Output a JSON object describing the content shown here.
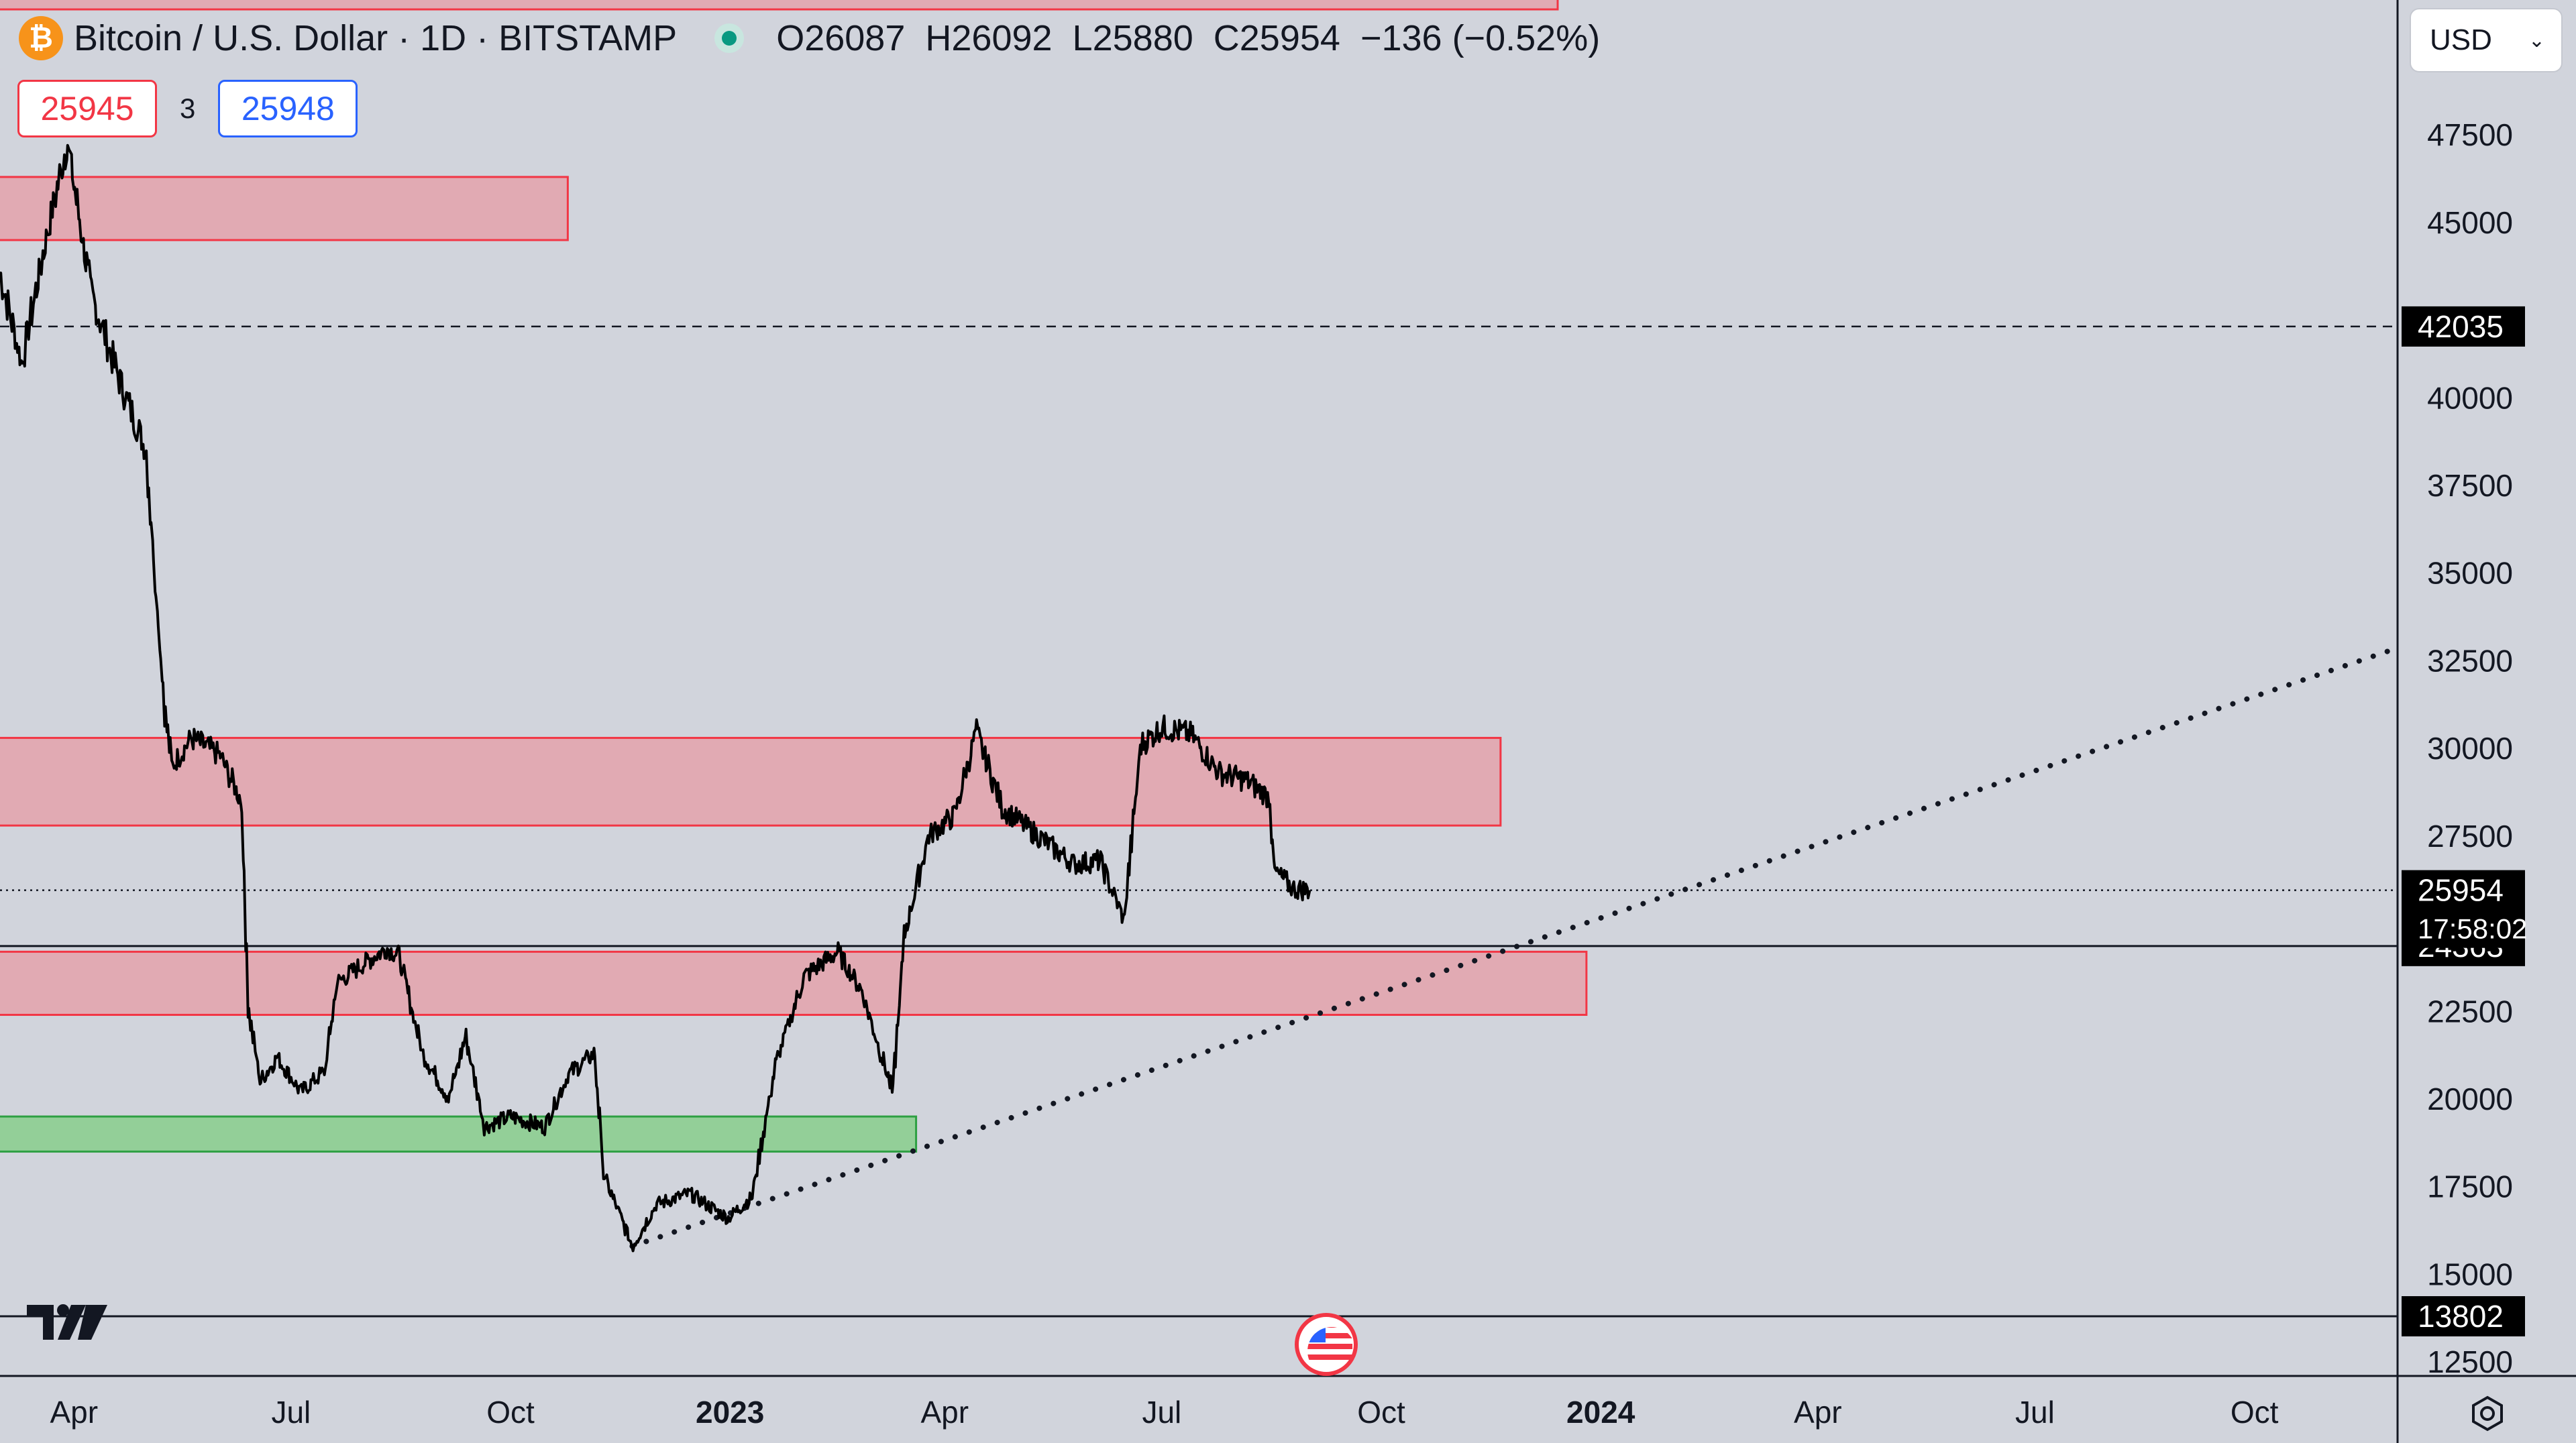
{
  "header": {
    "symbol_title": "Bitcoin / U.S. Dollar · 1D · BITSTAMP",
    "coin_icon": "bitcoin-icon",
    "open_label": "O",
    "open": "26087",
    "high_label": "H",
    "high": "26092",
    "low_label": "L",
    "low": "25880",
    "close_label": "C",
    "close": "25954",
    "change": "−136 (−0.52%)"
  },
  "trade": {
    "sell": "25945",
    "spread": "3",
    "buy": "25948"
  },
  "currency": {
    "selected": "USD"
  },
  "colors": {
    "background": "#d1d4dc",
    "resistance_zone": "#f23645",
    "support_zone": "#26a69a",
    "price_label_bg": "#000000"
  },
  "chart_data": {
    "type": "line",
    "interval": "1D",
    "price_axis": {
      "ticks": [
        "12500",
        "15000",
        "17500",
        "20000",
        "22500",
        "27500",
        "30000",
        "32500",
        "35000",
        "37500",
        "40000",
        "45000",
        "47500"
      ],
      "range": [
        12100,
        50200
      ]
    },
    "time_axis": {
      "ticks": [
        "Apr",
        "Jul",
        "Oct",
        "2023",
        "Apr",
        "Jul",
        "Oct",
        "2024",
        "Apr",
        "Jul",
        "Oct"
      ],
      "bold_ticks": [
        "2023",
        "2024"
      ],
      "range": [
        "2022-03-01",
        "2024-11-30"
      ]
    },
    "series": [
      {
        "x": [
          "2022-03-01",
          "2022-03-10",
          "2022-03-20",
          "2022-03-29",
          "2022-04-08",
          "2022-04-20",
          "2022-05-01",
          "2022-05-09",
          "2022-05-12",
          "2022-05-20",
          "2022-06-01",
          "2022-06-10",
          "2022-06-13",
          "2022-06-18",
          "2022-06-25",
          "2022-07-05",
          "2022-07-15",
          "2022-07-20",
          "2022-07-30",
          "2022-08-10",
          "2022-08-15",
          "2022-08-25",
          "2022-09-05",
          "2022-09-12",
          "2022-09-20",
          "2022-10-01",
          "2022-10-15",
          "2022-10-25",
          "2022-11-05",
          "2022-11-09",
          "2022-11-15",
          "2022-11-21",
          "2022-12-01",
          "2022-12-15",
          "2022-12-31",
          "2023-01-10",
          "2023-01-20",
          "2023-02-01",
          "2023-02-15",
          "2023-02-25",
          "2023-03-10",
          "2023-03-15",
          "2023-03-25",
          "2023-04-05",
          "2023-04-14",
          "2023-04-25",
          "2023-05-10",
          "2023-05-25",
          "2023-06-05",
          "2023-06-15",
          "2023-06-22",
          "2023-07-01",
          "2023-07-13",
          "2023-07-25",
          "2023-08-05",
          "2023-08-15",
          "2023-08-17",
          "2023-08-25",
          "2023-09-01"
        ],
        "values": [
          43500,
          41000,
          44500,
          47300,
          43000,
          40500,
          38500,
          31000,
          29500,
          30300,
          29800,
          28500,
          22500,
          20500,
          21200,
          20200,
          20800,
          23300,
          23800,
          24300,
          24100,
          21300,
          20000,
          21800,
          19200,
          19500,
          19200,
          20700,
          21300,
          17800,
          16800,
          15800,
          17000,
          17300,
          16600,
          17200,
          21000,
          23500,
          24200,
          23100,
          20200,
          24700,
          27500,
          28100,
          30500,
          28300,
          27500,
          26700,
          26800,
          25100,
          30100,
          30600,
          30400,
          29300,
          29100,
          28600,
          26500,
          26000,
          25954
        ]
      }
    ],
    "zones": [
      {
        "kind": "resistance",
        "from": "2022-03-01",
        "to": "2022-10-25",
        "low": 44500,
        "high": 46300
      },
      {
        "kind": "resistance",
        "from": "2022-03-01",
        "to": "2023-11-20",
        "low": 27800,
        "high": 30300
      },
      {
        "kind": "resistance",
        "from": "2022-03-01",
        "to": "2023-12-26",
        "low": 22400,
        "high": 24200
      },
      {
        "kind": "support",
        "from": "2022-03-01",
        "to": "2023-03-20",
        "low": 18500,
        "high": 19500
      }
    ],
    "price_lines": [
      {
        "label": "42035",
        "value": 42035,
        "style": "dashed"
      },
      {
        "label": "24363",
        "value": 24363,
        "style": "solid"
      },
      {
        "label": "13802",
        "value": 13802,
        "style": "solid"
      },
      {
        "label": "25954",
        "value": 25954,
        "style": "dotted",
        "countdown": "17:58:02"
      }
    ],
    "trendline": {
      "from": {
        "x": "2022-11-21",
        "y": 15800
      },
      "to": {
        "x": "2024-11-30",
        "y": 32800
      },
      "style": "dotted"
    }
  }
}
